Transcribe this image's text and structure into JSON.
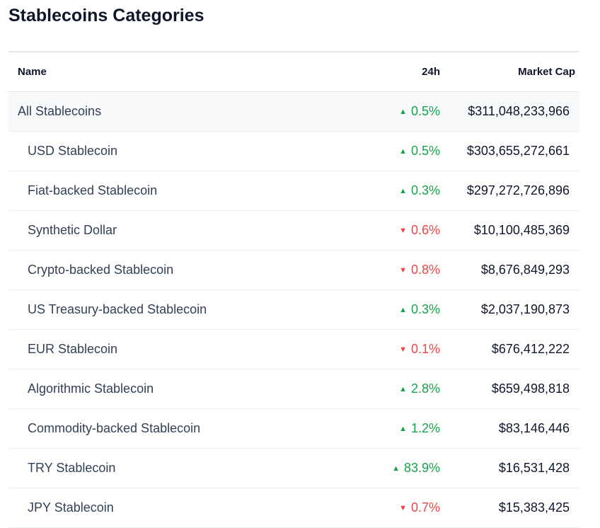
{
  "title": "Stablecoins Categories",
  "columns": {
    "name": "Name",
    "change": "24h",
    "market_cap": "Market Cap"
  },
  "colors": {
    "up": "#16a34a",
    "down": "#ef4444"
  },
  "rows": [
    {
      "name": "All Stablecoins",
      "change": "0.5%",
      "direction": "up",
      "market_cap": "$311,048,233,966"
    },
    {
      "name": "USD Stablecoin",
      "change": "0.5%",
      "direction": "up",
      "market_cap": "$303,655,272,661"
    },
    {
      "name": "Fiat-backed Stablecoin",
      "change": "0.3%",
      "direction": "up",
      "market_cap": "$297,272,726,896"
    },
    {
      "name": "Synthetic Dollar",
      "change": "0.6%",
      "direction": "down",
      "market_cap": "$10,100,485,369"
    },
    {
      "name": "Crypto-backed Stablecoin",
      "change": "0.8%",
      "direction": "down",
      "market_cap": "$8,676,849,293"
    },
    {
      "name": "US Treasury-backed Stablecoin",
      "change": "0.3%",
      "direction": "up",
      "market_cap": "$2,037,190,873"
    },
    {
      "name": "EUR Stablecoin",
      "change": "0.1%",
      "direction": "down",
      "market_cap": "$676,412,222"
    },
    {
      "name": "Algorithmic Stablecoin",
      "change": "2.8%",
      "direction": "up",
      "market_cap": "$659,498,818"
    },
    {
      "name": "Commodity-backed Stablecoin",
      "change": "1.2%",
      "direction": "up",
      "market_cap": "$83,146,446"
    },
    {
      "name": "TRY Stablecoin",
      "change": "83.9%",
      "direction": "up",
      "market_cap": "$16,531,428"
    },
    {
      "name": "JPY Stablecoin",
      "change": "0.7%",
      "direction": "down",
      "market_cap": "$15,383,425"
    }
  ]
}
